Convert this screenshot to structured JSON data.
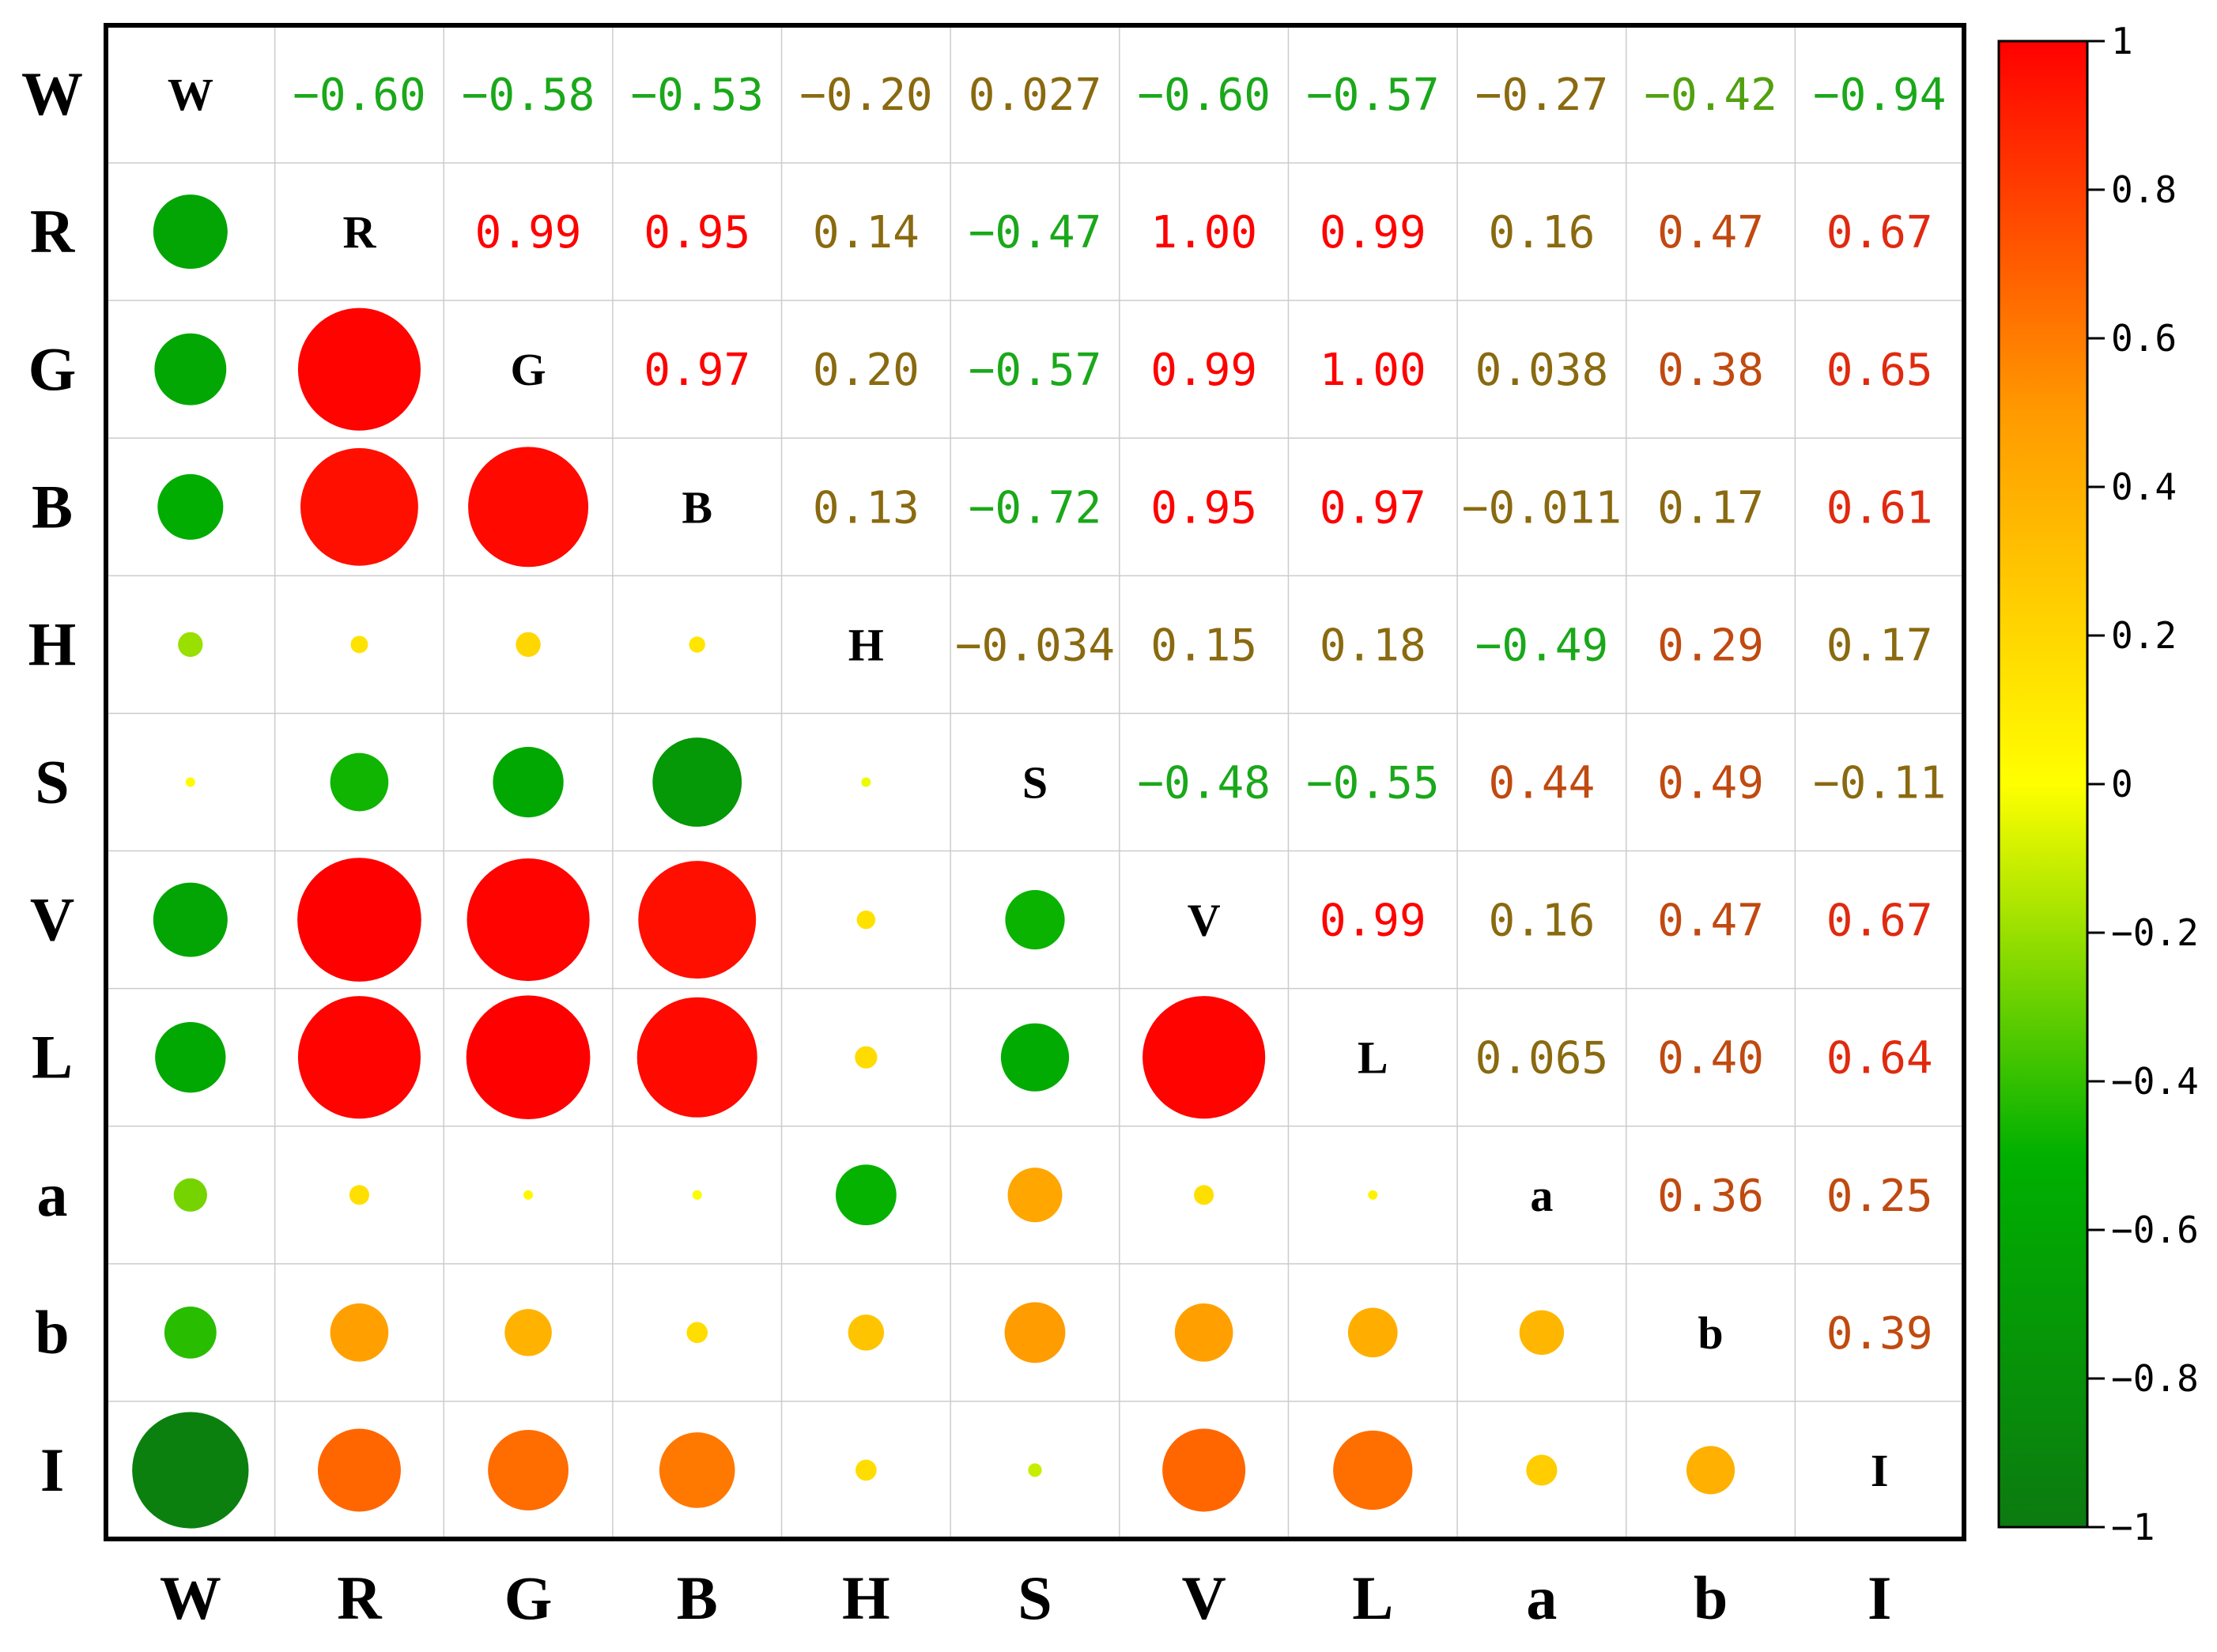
{
  "chart_data": {
    "type": "heatmap",
    "variables": [
      "W",
      "R",
      "G",
      "B",
      "H",
      "S",
      "V",
      "L",
      "a",
      "b",
      "I"
    ],
    "matrix": [
      [
        1,
        -0.6,
        -0.58,
        -0.53,
        -0.2,
        0.027,
        -0.6,
        -0.57,
        -0.27,
        -0.42,
        -0.94
      ],
      [
        -0.6,
        1,
        0.99,
        0.95,
        0.14,
        -0.47,
        1.0,
        0.99,
        0.16,
        0.47,
        0.67
      ],
      [
        -0.58,
        0.99,
        1,
        0.97,
        0.2,
        -0.57,
        0.99,
        1.0,
        0.038,
        0.38,
        0.65
      ],
      [
        -0.53,
        0.95,
        0.97,
        1,
        0.13,
        -0.72,
        0.95,
        0.97,
        -0.011,
        0.17,
        0.61
      ],
      [
        -0.2,
        0.14,
        0.2,
        0.13,
        1,
        -0.034,
        0.15,
        0.18,
        -0.49,
        0.29,
        0.17
      ],
      [
        0.027,
        -0.47,
        -0.57,
        -0.72,
        -0.034,
        1,
        -0.48,
        -0.55,
        0.44,
        0.49,
        -0.11
      ],
      [
        -0.6,
        1.0,
        0.99,
        0.95,
        0.15,
        -0.48,
        1,
        0.99,
        0.16,
        0.47,
        0.67
      ],
      [
        -0.57,
        0.99,
        1.0,
        0.97,
        0.18,
        -0.55,
        0.99,
        1,
        0.065,
        0.4,
        0.64
      ],
      [
        -0.27,
        0.16,
        0.038,
        -0.011,
        -0.49,
        0.44,
        0.16,
        0.065,
        1,
        0.36,
        0.25
      ],
      [
        -0.42,
        0.47,
        0.38,
        0.17,
        0.29,
        0.49,
        0.47,
        0.4,
        0.36,
        1,
        0.39
      ],
      [
        -0.94,
        0.67,
        0.65,
        0.61,
        0.17,
        -0.11,
        0.67,
        0.64,
        0.25,
        0.39,
        1
      ]
    ],
    "upper_labels": [
      [
        "",
        "−0.60",
        "−0.58",
        "−0.53",
        "−0.20",
        "0.027",
        "−0.60",
        "−0.57",
        "−0.27",
        "−0.42",
        "−0.94"
      ],
      [
        "",
        "",
        "0.99",
        "0.95",
        "0.14",
        "−0.47",
        "1.00",
        "0.99",
        "0.16",
        "0.47",
        "0.67"
      ],
      [
        "",
        "",
        "",
        "0.97",
        "0.20",
        "−0.57",
        "0.99",
        "1.00",
        "0.038",
        "0.38",
        "0.65"
      ],
      [
        "",
        "",
        "",
        "",
        "0.13",
        "−0.72",
        "0.95",
        "0.97",
        "−0.011",
        "0.17",
        "0.61"
      ],
      [
        "",
        "",
        "",
        "",
        "",
        "−0.034",
        "0.15",
        "0.18",
        "−0.49",
        "0.29",
        "0.17"
      ],
      [
        "",
        "",
        "",
        "",
        "",
        "",
        "−0.48",
        "−0.55",
        "0.44",
        "0.49",
        "−0.11"
      ],
      [
        "",
        "",
        "",
        "",
        "",
        "",
        "",
        "0.99",
        "0.16",
        "0.47",
        "0.67"
      ],
      [
        "",
        "",
        "",
        "",
        "",
        "",
        "",
        "",
        "0.065",
        "0.40",
        "0.64"
      ],
      [
        "",
        "",
        "",
        "",
        "",
        "",
        "",
        "",
        "",
        "0.36",
        "0.25"
      ],
      [
        "",
        "",
        "",
        "",
        "",
        "",
        "",
        "",
        "",
        "",
        "0.39"
      ],
      [
        "",
        "",
        "",
        "",
        "",
        "",
        "",
        "",
        "",
        "",
        ""
      ]
    ],
    "lower_triangle": "circles",
    "upper_triangle": "values",
    "diagonal": "variable names",
    "colorbar": {
      "range": [
        -1,
        1
      ],
      "ticks": [
        "1",
        "0.8",
        "0.6",
        "0.4",
        "0.2",
        "0",
        "−0.2",
        "−0.4",
        "−0.6",
        "−0.8",
        "−1"
      ],
      "tick_values": [
        1,
        0.8,
        0.6,
        0.4,
        0.2,
        0,
        -0.2,
        -0.4,
        -0.6,
        -0.8,
        -1
      ],
      "placement": "right",
      "colors": [
        "#0c7a10",
        "#00b000",
        "#ffff00",
        "#ff9a00",
        "#ff0000"
      ]
    },
    "title": "",
    "xlabel": "",
    "ylabel": "",
    "grid": true
  }
}
